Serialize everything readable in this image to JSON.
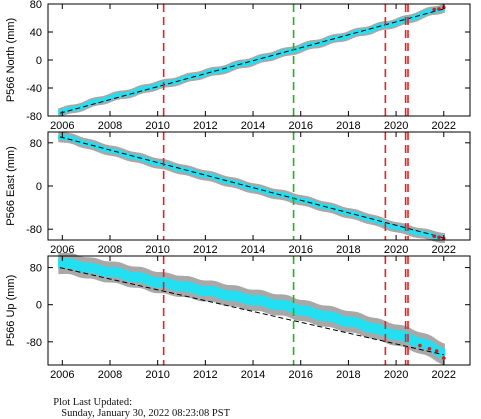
{
  "footer": {
    "label": "Plot Last Updated:",
    "timestamp": "Sunday, January 30, 2022 08:23:08 PST"
  },
  "colors": {
    "data": "#22e0f2",
    "error_band": "#a8a8a8",
    "trend": "#000000",
    "recent": "#e01515",
    "event_red": "#e22222",
    "event_green": "#22b322",
    "axis": "#000000"
  },
  "chart_data": [
    {
      "type": "scatter",
      "title": "",
      "ylabel": "P566 North (mm)",
      "xlabel": "",
      "xlim": [
        2005.4,
        2023.1
      ],
      "ylim": [
        -80,
        80
      ],
      "xticks": [
        2006,
        2008,
        2010,
        2012,
        2014,
        2016,
        2018,
        2020,
        2022
      ],
      "yticks": [
        -80,
        -40,
        0,
        40,
        80
      ],
      "grid": false,
      "legend": "none",
      "series": [
        {
          "x": [
            2005.9,
            2006.5,
            2007.0,
            2007.5,
            2008.0,
            2008.5,
            2009.0,
            2009.5,
            2010.0,
            2010.5,
            2011.0,
            2011.5,
            2012.0,
            2012.5,
            2013.0,
            2013.5,
            2014.0,
            2014.5,
            2015.0,
            2015.5,
            2016.0,
            2016.5,
            2017.0,
            2017.5,
            2018.0,
            2018.5,
            2019.0,
            2019.5,
            2020.0,
            2020.5,
            2021.0,
            2021.5,
            2022.0
          ],
          "y": [
            -74,
            -70,
            -64,
            -59,
            -54,
            -50,
            -46,
            -41,
            -36,
            -33,
            -28,
            -24,
            -19,
            -16,
            -11,
            -6,
            -2,
            3,
            8,
            12,
            17,
            22,
            26,
            31,
            35,
            40,
            44,
            49,
            53,
            58,
            64,
            70,
            74
          ],
          "trend": [
            [
              2005.9,
              -76
            ],
            [
              2022.0,
              73
            ]
          ],
          "recent_x": [
            2021.6,
            2021.8,
            2022.0
          ],
          "recent_y": [
            72,
            73,
            75
          ]
        }
      ],
      "event_lines_x": {
        "red": [
          2010.25,
          2019.55,
          2020.4,
          2020.5
        ],
        "green": [
          2015.7
        ]
      }
    },
    {
      "type": "scatter",
      "title": "",
      "ylabel": "P566 East (mm)",
      "xlabel": "",
      "xlim": [
        2005.4,
        2023.1
      ],
      "ylim": [
        -100,
        100
      ],
      "xticks": [
        2006,
        2008,
        2010,
        2012,
        2014,
        2016,
        2018,
        2020,
        2022
      ],
      "yticks": [
        -80,
        0,
        80
      ],
      "grid": false,
      "legend": "none",
      "series": [
        {
          "x": [
            2005.9,
            2006.5,
            2007.0,
            2007.5,
            2008.0,
            2008.5,
            2009.0,
            2009.5,
            2010.0,
            2010.5,
            2011.0,
            2011.5,
            2012.0,
            2012.5,
            2013.0,
            2013.5,
            2014.0,
            2014.5,
            2015.0,
            2015.5,
            2016.0,
            2016.5,
            2017.0,
            2017.5,
            2018.0,
            2018.5,
            2019.0,
            2019.5,
            2020.0,
            2020.5,
            2021.0,
            2021.5,
            2022.0
          ],
          "y": [
            91,
            86,
            79,
            72,
            66,
            60,
            54,
            48,
            42,
            37,
            31,
            25,
            20,
            14,
            8,
            2,
            -4,
            -10,
            -15,
            -20,
            -26,
            -32,
            -38,
            -44,
            -50,
            -56,
            -62,
            -70,
            -76,
            -82,
            -87,
            -92,
            -96
          ],
          "trend": [
            [
              2005.9,
              91
            ],
            [
              2022.0,
              -96
            ]
          ],
          "recent_x": [
            2021.6,
            2021.8,
            2022.0
          ],
          "recent_y": [
            -93,
            -95,
            -97
          ]
        }
      ],
      "event_lines_x": {
        "red": [
          2010.25,
          2019.55,
          2020.4,
          2020.5
        ],
        "green": [
          2015.7
        ]
      }
    },
    {
      "type": "scatter",
      "title": "",
      "ylabel": "P566 Up (mm)",
      "xlabel": "",
      "xlim": [
        2005.4,
        2023.1
      ],
      "ylim": [
        -130,
        105
      ],
      "xticks": [
        2006,
        2008,
        2010,
        2012,
        2014,
        2016,
        2018,
        2020,
        2022
      ],
      "yticks": [
        -80,
        0,
        80
      ],
      "grid": false,
      "legend": "none",
      "series": [
        {
          "x": [
            2005.9,
            2006.5,
            2007.0,
            2007.5,
            2008.0,
            2008.5,
            2009.0,
            2009.5,
            2010.0,
            2010.5,
            2011.0,
            2011.5,
            2012.0,
            2012.5,
            2013.0,
            2013.5,
            2014.0,
            2014.5,
            2015.0,
            2015.5,
            2016.0,
            2016.5,
            2017.0,
            2017.5,
            2018.0,
            2018.5,
            2019.0,
            2019.5,
            2020.0,
            2020.5,
            2021.0,
            2021.5,
            2022.0
          ],
          "y": [
            90,
            86,
            80,
            75,
            71,
            66,
            60,
            55,
            48,
            44,
            40,
            35,
            30,
            26,
            20,
            15,
            10,
            6,
            0,
            -4,
            -12,
            -18,
            -24,
            -30,
            -36,
            -42,
            -50,
            -58,
            -65,
            -72,
            -82,
            -92,
            -106
          ],
          "trend": [
            [
              2005.9,
              80
            ],
            [
              2022.0,
              -108
            ]
          ],
          "recent_x": [
            2021.0,
            2021.4,
            2021.7,
            2022.0
          ],
          "recent_y": [
            -88,
            -95,
            -100,
            -115
          ]
        }
      ],
      "event_lines_x": {
        "red": [
          2010.25,
          2019.55,
          2020.4,
          2020.5
        ],
        "green": [
          2015.7
        ]
      }
    }
  ]
}
